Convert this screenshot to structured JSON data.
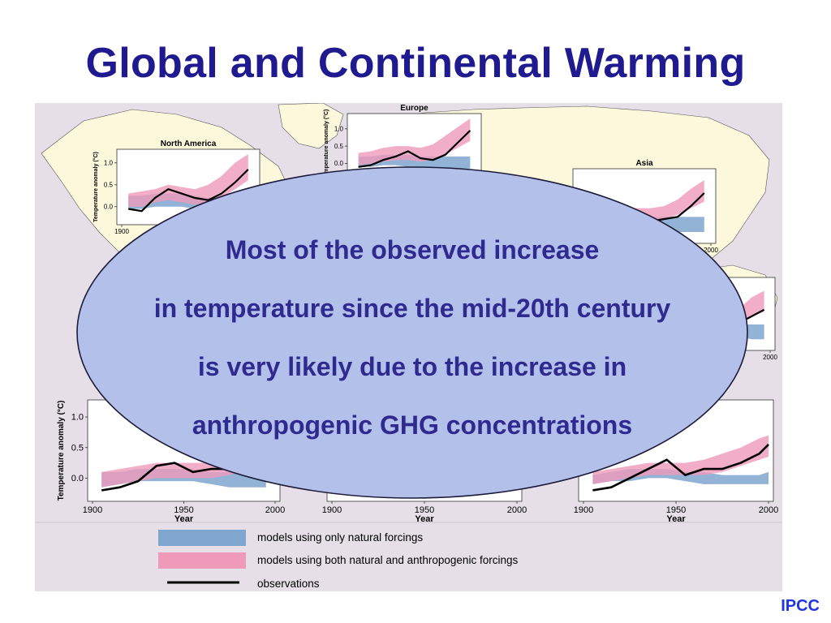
{
  "slide": {
    "title": "Global and Continental Warming",
    "source_label": "IPCC",
    "callout_lines": [
      "Most of the observed increase",
      "in temperature since the mid-20th century",
      "is very likely due to the increase in",
      "anthropogenic GHG concentrations"
    ]
  },
  "colors": {
    "title": "#1f1a8f",
    "natural_band": "#7fa6cf",
    "anthro_band": "#f09ab9",
    "observations": "#000000",
    "callout_fill": "#b3c0ea",
    "callout_text": "#2f2a8f",
    "map_land": "#fbf8dc",
    "figure_bg": "#e6dfe8",
    "source_label": "#1f35e0"
  },
  "legend": [
    {
      "kind": "natural",
      "label": "models using only natural forcings"
    },
    {
      "kind": "anthro",
      "label": "models using both natural and anthropogenic forcings"
    },
    {
      "kind": "obs",
      "label": "observations"
    }
  ],
  "chart_data": [
    {
      "type": "area",
      "title": "North America",
      "ylabel": "Temperature anomaly (°C)",
      "xlabel": "",
      "xlim": [
        1900,
        2000
      ],
      "ylim": [
        -0.3,
        1.2
      ],
      "yticks": [
        0.0,
        0.5,
        1.0
      ],
      "xticks": [
        1900
      ],
      "x": [
        1905,
        1915,
        1925,
        1935,
        1945,
        1955,
        1965,
        1975,
        1985,
        1995
      ],
      "natural_band": {
        "lo": [
          -0.05,
          -0.05,
          0.0,
          0.0,
          0.0,
          -0.05,
          -0.1,
          -0.1,
          -0.1,
          -0.15
        ],
        "hi": [
          0.25,
          0.25,
          0.3,
          0.3,
          0.3,
          0.25,
          0.2,
          0.2,
          0.2,
          0.2
        ]
      },
      "anthro_band": {
        "lo": [
          0.0,
          0.0,
          0.1,
          0.15,
          0.1,
          0.05,
          0.1,
          0.2,
          0.4,
          0.6
        ],
        "hi": [
          0.3,
          0.35,
          0.4,
          0.5,
          0.45,
          0.4,
          0.5,
          0.7,
          1.0,
          1.2
        ]
      },
      "observations": [
        -0.05,
        -0.1,
        0.2,
        0.4,
        0.3,
        0.2,
        0.15,
        0.3,
        0.55,
        0.85
      ]
    },
    {
      "type": "area",
      "title": "Europe",
      "ylabel": "Temperature anomaly (°C)",
      "xlabel": "",
      "xlim": [
        1900,
        2000
      ],
      "ylim": [
        -0.2,
        1.3
      ],
      "yticks": [
        0.0,
        0.5,
        1.0
      ],
      "xticks": [],
      "x": [
        1905,
        1915,
        1925,
        1935,
        1945,
        1955,
        1965,
        1975,
        1985,
        1995
      ],
      "natural_band": {
        "lo": [
          -0.1,
          -0.1,
          -0.05,
          -0.05,
          -0.1,
          -0.1,
          -0.15,
          -0.15,
          -0.15,
          -0.15
        ],
        "hi": [
          0.2,
          0.2,
          0.25,
          0.25,
          0.25,
          0.2,
          0.2,
          0.2,
          0.2,
          0.2
        ]
      },
      "anthro_band": {
        "lo": [
          -0.05,
          0.0,
          0.05,
          0.1,
          0.1,
          0.05,
          0.1,
          0.25,
          0.45,
          0.65
        ],
        "hi": [
          0.3,
          0.35,
          0.45,
          0.5,
          0.5,
          0.45,
          0.55,
          0.8,
          1.05,
          1.3
        ]
      },
      "observations": [
        -0.1,
        -0.05,
        0.1,
        0.2,
        0.35,
        0.15,
        0.1,
        0.25,
        0.6,
        0.95
      ]
    },
    {
      "type": "area",
      "title": "Asia",
      "ylabel": "",
      "xlabel": "",
      "xlim": [
        1900,
        2000
      ],
      "ylim": [
        -0.3,
        1.2
      ],
      "yticks": [],
      "xticks": [
        2000
      ],
      "x": [
        1905,
        1915,
        1925,
        1935,
        1945,
        1955,
        1965,
        1975,
        1985,
        1995
      ],
      "natural_band": {
        "lo": [
          -0.1,
          -0.1,
          -0.05,
          -0.05,
          -0.05,
          -0.1,
          -0.1,
          -0.15,
          -0.15,
          -0.15
        ],
        "hi": [
          0.2,
          0.2,
          0.25,
          0.25,
          0.25,
          0.2,
          0.2,
          0.2,
          0.2,
          0.2
        ]
      },
      "anthro_band": {
        "lo": [
          -0.05,
          0.0,
          0.05,
          0.1,
          0.1,
          0.1,
          0.15,
          0.25,
          0.4,
          0.55
        ],
        "hi": [
          0.3,
          0.3,
          0.35,
          0.4,
          0.4,
          0.4,
          0.45,
          0.6,
          0.85,
          1.05
        ]
      },
      "observations": [
        -0.1,
        -0.05,
        0.05,
        0.1,
        0.15,
        0.1,
        0.15,
        0.2,
        0.45,
        0.75
      ]
    },
    {
      "type": "area",
      "title": "",
      "ylabel": "",
      "xlabel": "",
      "xlim": [
        1900,
        2000
      ],
      "ylim": [
        -0.3,
        1.2
      ],
      "yticks": [],
      "xticks": [
        2000
      ],
      "x": [
        1905,
        1915,
        1925,
        1935,
        1945,
        1955,
        1965,
        1975,
        1985,
        1995
      ],
      "natural_band": {
        "lo": [
          -0.1,
          -0.1,
          -0.05,
          -0.05,
          -0.05,
          -0.1,
          -0.1,
          -0.1,
          -0.15,
          -0.15
        ],
        "hi": [
          0.2,
          0.2,
          0.25,
          0.25,
          0.25,
          0.2,
          0.2,
          0.2,
          0.2,
          0.2
        ]
      },
      "anthro_band": {
        "lo": [
          0.0,
          0.0,
          0.05,
          0.1,
          0.1,
          0.1,
          0.15,
          0.25,
          0.4,
          0.5
        ],
        "hi": [
          0.3,
          0.3,
          0.35,
          0.4,
          0.4,
          0.4,
          0.45,
          0.6,
          0.85,
          1.0
        ]
      },
      "observations": [
        -0.05,
        0.0,
        0.1,
        0.15,
        0.2,
        0.15,
        0.2,
        0.25,
        0.4,
        0.55
      ]
    },
    {
      "type": "area",
      "title": "",
      "ylabel": "Temperature anomaly (°C)",
      "xlabel": "Year",
      "xlim": [
        1900,
        2000
      ],
      "ylim": [
        -0.3,
        1.2
      ],
      "yticks": [
        0.0,
        0.5,
        1.0
      ],
      "xticks": [
        1900,
        1950,
        2000
      ],
      "x": [
        1905,
        1915,
        1925,
        1935,
        1945,
        1955,
        1965,
        1975,
        1985,
        1995
      ],
      "natural_band": {
        "lo": [
          -0.15,
          -0.1,
          -0.05,
          -0.05,
          -0.05,
          -0.05,
          -0.1,
          -0.15,
          -0.15,
          -0.15
        ],
        "hi": [
          0.1,
          0.1,
          0.15,
          0.15,
          0.15,
          0.15,
          0.1,
          0.1,
          0.05,
          0.05
        ]
      },
      "anthro_band": {
        "lo": [
          -0.15,
          -0.1,
          -0.05,
          0.0,
          0.0,
          0.0,
          0.0,
          0.05,
          0.15,
          0.25
        ],
        "hi": [
          0.1,
          0.15,
          0.2,
          0.25,
          0.25,
          0.25,
          0.25,
          0.4,
          0.55,
          0.7
        ]
      },
      "observations": [
        -0.2,
        -0.15,
        -0.05,
        0.2,
        0.25,
        0.1,
        0.15,
        0.15,
        0.3,
        0.5
      ]
    },
    {
      "type": "area",
      "title": "",
      "ylabel": "Te",
      "xlabel": "Year",
      "xlim": [
        1900,
        2000
      ],
      "ylim": [
        -0.3,
        1.2
      ],
      "yticks": [],
      "xticks": [
        1900,
        1950,
        2000
      ],
      "x": [
        1905,
        1915,
        1925,
        1935,
        1945,
        1955,
        1965,
        1975,
        1985,
        1995
      ],
      "natural_band": {
        "lo": [
          -0.1,
          -0.1,
          -0.05,
          -0.05,
          -0.05,
          -0.05,
          -0.1,
          -0.1,
          -0.1,
          -0.1
        ],
        "hi": [
          0.1,
          0.1,
          0.15,
          0.15,
          0.15,
          0.15,
          0.1,
          0.1,
          0.1,
          0.1
        ]
      },
      "anthro_band": {
        "lo": [
          -0.1,
          -0.05,
          0.0,
          0.0,
          0.0,
          0.0,
          0.0,
          0.05,
          0.1,
          0.15
        ],
        "hi": [
          0.1,
          0.15,
          0.2,
          0.2,
          0.2,
          0.2,
          0.25,
          0.35,
          0.45,
          0.55
        ]
      },
      "observations": [
        -0.1,
        -0.05,
        0.0,
        0.1,
        0.1,
        0.05,
        0.1,
        0.15,
        0.25,
        0.35
      ]
    },
    {
      "type": "area",
      "title": "",
      "ylabel": "Te",
      "xlabel": "Year",
      "xlim": [
        1900,
        2000
      ],
      "ylim": [
        -0.3,
        1.2
      ],
      "yticks": [],
      "xticks": [
        1900,
        1950,
        2000
      ],
      "x": [
        1905,
        1915,
        1925,
        1935,
        1945,
        1955,
        1965,
        1975,
        1985,
        1995,
        2000
      ],
      "natural_band": {
        "lo": [
          -0.1,
          -0.05,
          -0.05,
          0.0,
          0.0,
          -0.05,
          -0.1,
          -0.1,
          -0.1,
          -0.1,
          -0.1
        ],
        "hi": [
          0.05,
          0.1,
          0.15,
          0.15,
          0.15,
          0.1,
          0.1,
          0.05,
          0.05,
          0.05,
          0.1
        ]
      },
      "anthro_band": {
        "lo": [
          -0.1,
          -0.05,
          0.0,
          0.05,
          0.05,
          0.05,
          0.05,
          0.1,
          0.2,
          0.3,
          0.35
        ],
        "hi": [
          0.1,
          0.15,
          0.2,
          0.25,
          0.25,
          0.25,
          0.3,
          0.4,
          0.5,
          0.65,
          0.7
        ]
      },
      "observations": [
        -0.2,
        -0.15,
        0.0,
        0.15,
        0.3,
        0.05,
        0.15,
        0.15,
        0.25,
        0.4,
        0.55
      ]
    }
  ]
}
